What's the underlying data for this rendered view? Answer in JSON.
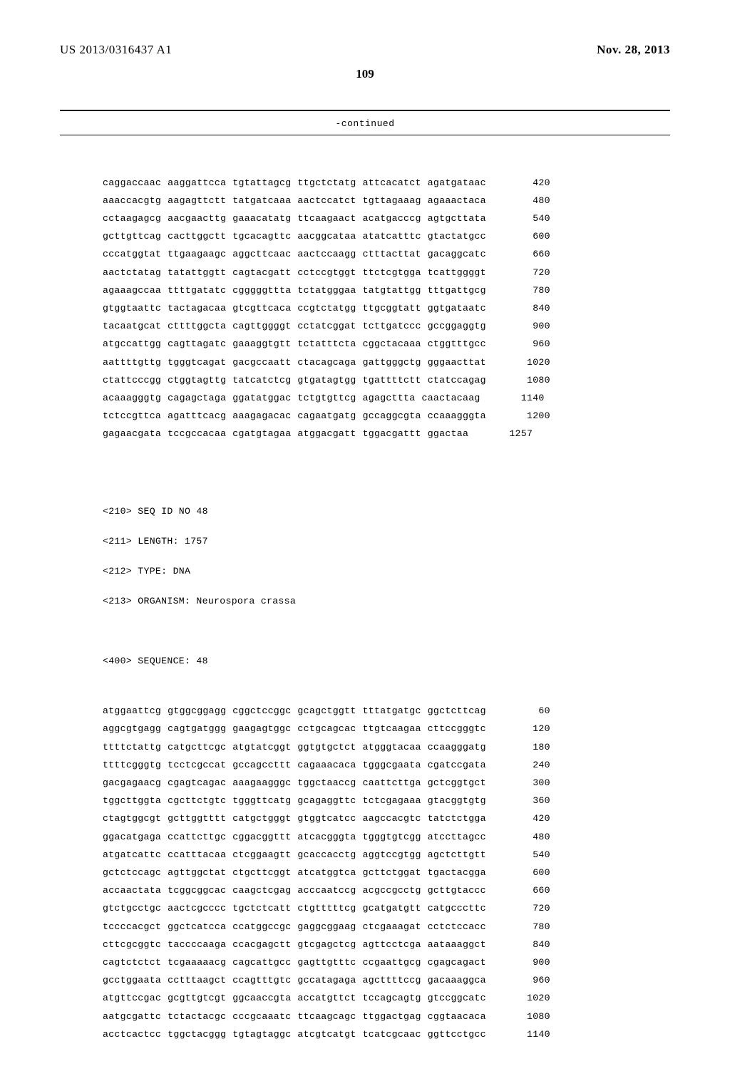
{
  "header": {
    "publication_id": "US 2013/0316437 A1",
    "publication_date": "Nov. 28, 2013"
  },
  "page_number": "109",
  "continued_label": "-continued",
  "block1": {
    "lines": [
      {
        "groups": [
          "caggaccaac",
          "aaggattcca",
          "tgtattagcg",
          "ttgctctatg",
          "attcacatct",
          "agatgataac"
        ],
        "num": "420"
      },
      {
        "groups": [
          "aaaccacgtg",
          "aagagttctt",
          "tatgatcaaa",
          "aactccatct",
          "tgttagaaag",
          "agaaactaca"
        ],
        "num": "480"
      },
      {
        "groups": [
          "cctaagagcg",
          "aacgaacttg",
          "gaaacatatg",
          "ttcaagaact",
          "acatgacccg",
          "agtgcttata"
        ],
        "num": "540"
      },
      {
        "groups": [
          "gcttgttcag",
          "cacttggctt",
          "tgcacagttc",
          "aacggcataa",
          "atatcatttc",
          "gtactatgcc"
        ],
        "num": "600"
      },
      {
        "groups": [
          "cccatggtat",
          "ttgaagaagc",
          "aggcttcaac",
          "aactccaagg",
          "ctttacttat",
          "gacaggcatc"
        ],
        "num": "660"
      },
      {
        "groups": [
          "aactctatag",
          "tatattggtt",
          "cagtacgatt",
          "cctccgtggt",
          "ttctcgtgga",
          "tcattggggt"
        ],
        "num": "720"
      },
      {
        "groups": [
          "agaaagccaa",
          "ttttgatatc",
          "cgggggttta",
          "tctatgggaa",
          "tatgtattgg",
          "tttgattgcg"
        ],
        "num": "780"
      },
      {
        "groups": [
          "gtggtaattc",
          "tactagacaa",
          "gtcgttcaca",
          "ccgtctatgg",
          "ttgcggtatt",
          "ggtgataatc"
        ],
        "num": "840"
      },
      {
        "groups": [
          "tacaatgcat",
          "cttttggcta",
          "cagttggggt",
          "cctatcggat",
          "tcttgatccc",
          "gccggaggtg"
        ],
        "num": "900"
      },
      {
        "groups": [
          "atgccattgg",
          "cagttagatc",
          "gaaaggtgtt",
          "tctatttcta",
          "cggctacaaa",
          "ctggtttgcc"
        ],
        "num": "960"
      },
      {
        "groups": [
          "aattttgttg",
          "tgggtcagat",
          "gacgccaatt",
          "ctacagcaga",
          "gattgggctg",
          "gggaacttat"
        ],
        "num": "1020"
      },
      {
        "groups": [
          "ctattcccgg",
          "ctggtagttg",
          "tatcatctcg",
          "gtgatagtgg",
          "tgattttctt",
          "ctatccagag"
        ],
        "num": "1080"
      },
      {
        "groups": [
          "acaaagggtg",
          "cagagctaga",
          "ggatatggac",
          "tctgtgttcg",
          "agagcttta",
          "caactacaag"
        ],
        "num": "1140"
      },
      {
        "groups": [
          "tctccgttca",
          "agatttcacg",
          "aaagagacac",
          "cagaatgatg",
          "gccaggcgta",
          "ccaaagggta"
        ],
        "num": "1200"
      },
      {
        "groups": [
          "gagaacgata",
          "tccgccacaa",
          "cgatgtagaa",
          "atggacgatt",
          "tggacgattt",
          "ggactaa"
        ],
        "num": "1257"
      }
    ]
  },
  "seq_meta": {
    "id_line": "<210> SEQ ID NO 48",
    "length_line": "<211> LENGTH: 1757",
    "type_line": "<212> TYPE: DNA",
    "organism_line": "<213> ORGANISM: Neurospora crassa",
    "sequence_line": "<400> SEQUENCE: 48"
  },
  "block2": {
    "lines": [
      {
        "groups": [
          "atggaattcg",
          "gtggcggagg",
          "cggctccggc",
          "gcagctggtt",
          "tttatgatgc",
          "ggctcttcag"
        ],
        "num": "60"
      },
      {
        "groups": [
          "aggcgtgagg",
          "cagtgatggg",
          "gaagagtggc",
          "cctgcagcac",
          "ttgtcaagaa",
          "cttccgggtc"
        ],
        "num": "120"
      },
      {
        "groups": [
          "ttttctattg",
          "catgcttcgc",
          "atgtatcggt",
          "ggtgtgctct",
          "atgggtacaa",
          "ccaagggatg"
        ],
        "num": "180"
      },
      {
        "groups": [
          "ttttcgggtg",
          "tcctcgccat",
          "gccagccttt",
          "cagaaacaca",
          "tgggcgaata",
          "cgatccgata"
        ],
        "num": "240"
      },
      {
        "groups": [
          "gacgagaacg",
          "cgagtcagac",
          "aaagaagggc",
          "tggctaaccg",
          "caattcttga",
          "gctcggtgct"
        ],
        "num": "300"
      },
      {
        "groups": [
          "tggcttggta",
          "cgcttctgtc",
          "tgggttcatg",
          "gcagaggttc",
          "tctcgagaaa",
          "gtacggtgtg"
        ],
        "num": "360"
      },
      {
        "groups": [
          "ctagtggcgt",
          "gcttggtttt",
          "catgctgggt",
          "gtggtcatcc",
          "aagccacgtc",
          "tatctctgga"
        ],
        "num": "420"
      },
      {
        "groups": [
          "ggacatgaga",
          "ccattcttgc",
          "cggacggttt",
          "atcacgggta",
          "tgggtgtcgg",
          "atccttagcc"
        ],
        "num": "480"
      },
      {
        "groups": [
          "atgatcattc",
          "ccatttacaa",
          "ctcggaagtt",
          "gcaccacctg",
          "aggtccgtgg",
          "agctcttgtt"
        ],
        "num": "540"
      },
      {
        "groups": [
          "gctctccagc",
          "agttggctat",
          "ctgcttcggt",
          "atcatggtca",
          "gcttctggat",
          "tgactacgga"
        ],
        "num": "600"
      },
      {
        "groups": [
          "accaactata",
          "tcggcggcac",
          "caagctcgag",
          "acccaatccg",
          "acgccgcctg",
          "gcttgtaccc"
        ],
        "num": "660"
      },
      {
        "groups": [
          "gtctgcctgc",
          "aactcgcccc",
          "tgctctcatt",
          "ctgtttttcg",
          "gcatgatgtt",
          "catgcccttc"
        ],
        "num": "720"
      },
      {
        "groups": [
          "tccccacgct",
          "ggctcatcca",
          "ccatggccgc",
          "gaggcggaag",
          "ctcgaaagat",
          "cctctccacc"
        ],
        "num": "780"
      },
      {
        "groups": [
          "cttcgcggtc",
          "taccccaaga",
          "ccacgagctt",
          "gtcgagctcg",
          "agttcctcga",
          "aataaaggct"
        ],
        "num": "840"
      },
      {
        "groups": [
          "cagtctctct",
          "tcgaaaaacg",
          "cagcattgcc",
          "gagttgtttc",
          "ccgaattgcg",
          "cgagcagact"
        ],
        "num": "900"
      },
      {
        "groups": [
          "gcctggaata",
          "cctttaagct",
          "ccagtttgtc",
          "gccatagaga",
          "agcttttccg",
          "gacaaaggca"
        ],
        "num": "960"
      },
      {
        "groups": [
          "atgttccgac",
          "gcgttgtcgt",
          "ggcaaccgta",
          "accatgttct",
          "tccagcagtg",
          "gtccggcatc"
        ],
        "num": "1020"
      },
      {
        "groups": [
          "aatgcgattc",
          "tctactacgc",
          "cccgcaaatc",
          "ttcaagcagc",
          "ttggactgag",
          "cggtaacaca"
        ],
        "num": "1080"
      },
      {
        "groups": [
          "acctcactcc",
          "tggctacggg",
          "tgtagtaggc",
          "atcgtcatgt",
          "tcatcgcaac",
          "ggttcctgcc"
        ],
        "num": "1140"
      }
    ]
  }
}
